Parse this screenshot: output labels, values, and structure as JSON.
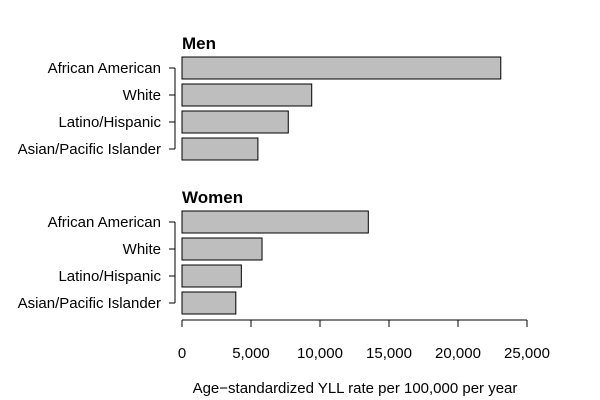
{
  "chart_data": {
    "type": "bar",
    "orientation": "horizontal",
    "categories": [
      "African American",
      "White",
      "Latino/Hispanic",
      "Asian/Pacific Islander"
    ],
    "panels": [
      {
        "title": "Men",
        "values": [
          23100,
          9400,
          7700,
          5500
        ]
      },
      {
        "title": "Women",
        "values": [
          13500,
          5800,
          4300,
          3900
        ]
      }
    ],
    "xlabel": "Age−standardized YLL rate per 100,000 per year",
    "xlim": [
      0,
      25000
    ],
    "xticks": [
      0,
      5000,
      10000,
      15000,
      20000,
      25000
    ],
    "xtick_labels": [
      "0",
      "5,000",
      "10,000",
      "15,000",
      "20,000",
      "25,000"
    ],
    "bar_color": "#bebebe",
    "grid": false,
    "legend": "none"
  }
}
